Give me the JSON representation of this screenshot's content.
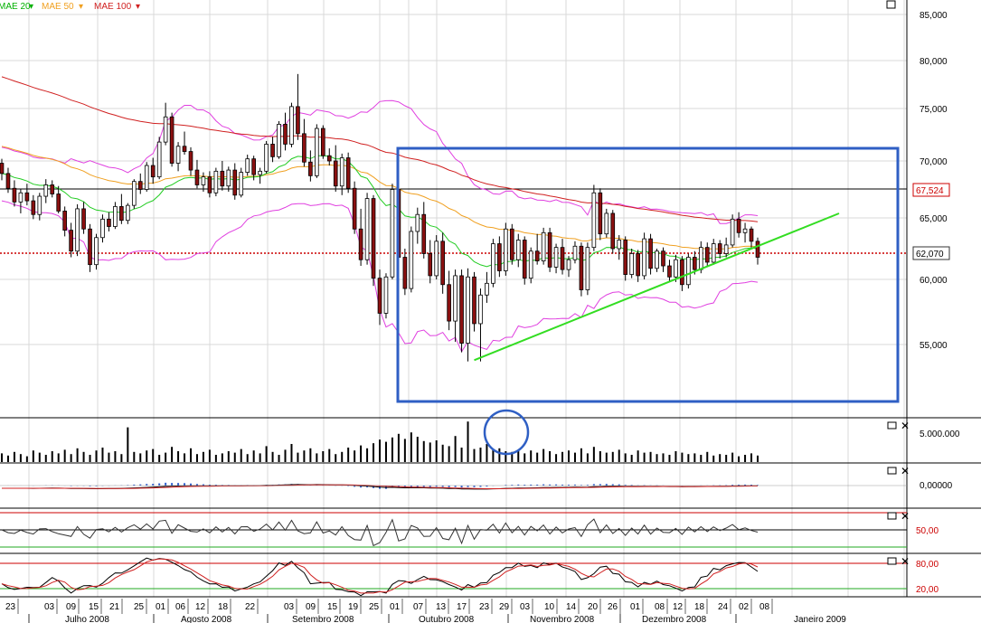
{
  "legend": [
    {
      "label": "MAE 20",
      "color": "#00b000"
    },
    {
      "label": "MAE 50",
      "color": "#f0a020"
    },
    {
      "label": "MAE 100",
      "color": "#d02020"
    }
  ],
  "price_axis": {
    "ticks": [
      "85,000",
      "80,000",
      "75,000",
      "70,000",
      "65,000",
      "60,000",
      "55,000"
    ],
    "tick_values": [
      85000,
      80000,
      75000,
      70000,
      65000,
      60000,
      55000
    ],
    "marker_1": {
      "label": "67,524",
      "value": 67524,
      "color": "#cc0000"
    },
    "marker_2": {
      "label": "62,070",
      "value": 62070,
      "color": "#cc0000"
    }
  },
  "volume_axis": {
    "label": "5.000.000"
  },
  "macd_axis": {
    "label": "0,00000"
  },
  "rsi_axis": {
    "label": "50,00"
  },
  "stoch_axis": {
    "upper": "80,00",
    "lower": "20,00"
  },
  "x_axis": {
    "days": [
      "23",
      "03",
      "09",
      "15",
      "21",
      "25",
      "01",
      "06",
      "12",
      "18",
      "22",
      "03",
      "09",
      "15",
      "19",
      "25",
      "01",
      "07",
      "13",
      "17",
      "23",
      "29",
      "03",
      "10",
      "14",
      "20",
      "26",
      "01",
      "08",
      "12",
      "18",
      "24",
      "02",
      "08"
    ],
    "months": [
      "Julho 2008",
      "Agosto 2008",
      "Setembro 2008",
      "Outubro 2008",
      "Novembro 2008",
      "Dezembro 2008",
      "Janeiro 2009"
    ]
  },
  "chart_data": {
    "type": "candlestick",
    "ylim": [
      52000,
      87000
    ],
    "horizontal_levels": [
      67524,
      62070
    ],
    "candles": [
      [
        69.8,
        70.2,
        68.3,
        68.9
      ],
      [
        68.9,
        69.4,
        67.2,
        67.6
      ],
      [
        67.6,
        68.3,
        66.0,
        66.4
      ],
      [
        66.4,
        67.5,
        65.4,
        67.2
      ],
      [
        67.2,
        68.0,
        66.1,
        66.5
      ],
      [
        66.5,
        67.0,
        64.9,
        65.3
      ],
      [
        65.3,
        67.2,
        64.8,
        66.9
      ],
      [
        66.9,
        68.4,
        66.3,
        67.9
      ],
      [
        67.9,
        68.3,
        66.8,
        67.1
      ],
      [
        67.1,
        67.8,
        65.4,
        65.6
      ],
      [
        65.6,
        66.0,
        63.5,
        64.0
      ],
      [
        64.0,
        64.6,
        61.8,
        62.3
      ],
      [
        62.3,
        66.2,
        61.9,
        65.8
      ],
      [
        65.8,
        66.4,
        63.7,
        64.1
      ],
      [
        64.1,
        64.5,
        60.6,
        61.2
      ],
      [
        61.2,
        63.7,
        60.8,
        63.4
      ],
      [
        63.4,
        65.3,
        63.0,
        64.9
      ],
      [
        64.9,
        65.5,
        63.9,
        64.3
      ],
      [
        64.3,
        66.4,
        64.1,
        66.0
      ],
      [
        66.0,
        67.1,
        64.5,
        64.8
      ],
      [
        64.8,
        66.3,
        64.5,
        66.1
      ],
      [
        66.1,
        68.4,
        65.8,
        68.2
      ],
      [
        68.2,
        68.9,
        67.1,
        67.5
      ],
      [
        67.5,
        69.9,
        67.3,
        69.6
      ],
      [
        69.6,
        70.3,
        68.0,
        68.6
      ],
      [
        68.6,
        72.3,
        68.4,
        71.8
      ],
      [
        71.8,
        75.6,
        71.5,
        74.2
      ],
      [
        74.2,
        74.6,
        69.5,
        69.8
      ],
      [
        69.8,
        71.8,
        69.1,
        71.4
      ],
      [
        71.4,
        72.8,
        70.6,
        70.9
      ],
      [
        70.9,
        71.3,
        68.7,
        69.2
      ],
      [
        69.2,
        70.1,
        67.6,
        67.9
      ],
      [
        67.9,
        69.0,
        67.3,
        68.6
      ],
      [
        68.6,
        69.1,
        66.8,
        67.2
      ],
      [
        67.2,
        69.4,
        66.9,
        69.1
      ],
      [
        69.1,
        70.0,
        67.4,
        67.8
      ],
      [
        67.8,
        69.5,
        67.3,
        69.2
      ],
      [
        69.2,
        69.8,
        66.6,
        67.0
      ],
      [
        67.0,
        69.4,
        66.8,
        69.0
      ],
      [
        69.0,
        70.6,
        68.7,
        70.2
      ],
      [
        70.2,
        70.5,
        68.3,
        68.8
      ],
      [
        68.8,
        69.4,
        68.0,
        69.1
      ],
      [
        69.1,
        71.9,
        68.9,
        71.6
      ],
      [
        71.6,
        72.3,
        69.9,
        70.4
      ],
      [
        70.4,
        73.8,
        70.2,
        73.5
      ],
      [
        73.5,
        74.6,
        71.0,
        71.6
      ],
      [
        71.6,
        75.6,
        71.3,
        75.2
      ],
      [
        75.2,
        78.6,
        72.0,
        72.6
      ],
      [
        72.6,
        74.0,
        69.5,
        69.9
      ],
      [
        69.9,
        71.0,
        68.2,
        68.7
      ],
      [
        68.7,
        73.5,
        68.5,
        73.1
      ],
      [
        73.1,
        73.4,
        70.2,
        70.5
      ],
      [
        70.5,
        71.2,
        69.6,
        70.0
      ],
      [
        70.0,
        71.5,
        67.3,
        67.8
      ],
      [
        67.8,
        70.7,
        67.0,
        70.3
      ],
      [
        70.3,
        70.8,
        67.2,
        67.6
      ],
      [
        67.6,
        68.2,
        63.7,
        64.1
      ],
      [
        64.1,
        65.8,
        61.1,
        61.6
      ],
      [
        61.6,
        67.2,
        61.2,
        66.7
      ],
      [
        66.7,
        67.0,
        59.5,
        60.1
      ],
      [
        60.1,
        60.8,
        56.5,
        57.4
      ],
      [
        57.4,
        60.5,
        57.0,
        60.2
      ],
      [
        60.2,
        68.0,
        60.0,
        67.5
      ],
      [
        67.5,
        68.2,
        61.3,
        61.8
      ],
      [
        61.8,
        62.5,
        58.8,
        59.3
      ],
      [
        59.3,
        64.3,
        59.0,
        63.9
      ],
      [
        63.9,
        65.9,
        62.9,
        65.3
      ],
      [
        65.3,
        66.4,
        61.7,
        62.1
      ],
      [
        62.1,
        63.2,
        59.7,
        60.3
      ],
      [
        60.3,
        63.6,
        60.0,
        63.1
      ],
      [
        63.1,
        63.8,
        58.9,
        59.6
      ],
      [
        59.6,
        60.7,
        56.1,
        56.8
      ],
      [
        56.8,
        60.8,
        55.2,
        60.3
      ],
      [
        60.3,
        60.8,
        54.4,
        55.1
      ],
      [
        55.1,
        60.9,
        53.7,
        60.2
      ],
      [
        60.2,
        60.6,
        56.0,
        56.6
      ],
      [
        56.6,
        59.3,
        53.7,
        58.8
      ],
      [
        58.8,
        60.6,
        58.2,
        59.7
      ],
      [
        59.7,
        63.3,
        59.4,
        62.9
      ],
      [
        62.9,
        63.5,
        60.2,
        60.7
      ],
      [
        60.7,
        64.6,
        60.3,
        64.1
      ],
      [
        64.1,
        64.5,
        61.2,
        61.6
      ],
      [
        61.6,
        63.7,
        61.0,
        63.2
      ],
      [
        63.2,
        63.5,
        59.6,
        60.1
      ],
      [
        60.1,
        62.6,
        59.7,
        62.3
      ],
      [
        62.3,
        63.7,
        61.2,
        61.5
      ],
      [
        61.5,
        64.2,
        61.2,
        63.8
      ],
      [
        63.8,
        64.2,
        60.6,
        61.0
      ],
      [
        61.0,
        62.9,
        60.5,
        62.6
      ],
      [
        62.6,
        63.3,
        60.4,
        60.8
      ],
      [
        60.8,
        61.9,
        60.2,
        61.6
      ],
      [
        61.6,
        63.1,
        61.3,
        62.7
      ],
      [
        62.7,
        63.0,
        58.7,
        59.2
      ],
      [
        59.2,
        63.0,
        58.8,
        62.6
      ],
      [
        62.6,
        67.9,
        62.3,
        67.2
      ],
      [
        67.2,
        67.6,
        63.2,
        63.7
      ],
      [
        63.7,
        65.8,
        63.4,
        65.4
      ],
      [
        65.4,
        65.7,
        62.1,
        62.5
      ],
      [
        62.5,
        63.6,
        61.6,
        63.2
      ],
      [
        63.2,
        63.5,
        59.9,
        60.4
      ],
      [
        60.4,
        62.5,
        60.1,
        62.1
      ],
      [
        62.1,
        62.4,
        59.8,
        60.3
      ],
      [
        60.3,
        63.8,
        60.0,
        63.3
      ],
      [
        63.3,
        63.7,
        60.4,
        60.9
      ],
      [
        60.9,
        62.5,
        60.6,
        62.3
      ],
      [
        62.3,
        62.6,
        60.6,
        61.1
      ],
      [
        61.1,
        61.6,
        59.9,
        60.2
      ],
      [
        60.2,
        62.0,
        59.8,
        61.6
      ],
      [
        61.6,
        61.9,
        59.1,
        59.6
      ],
      [
        59.6,
        62.1,
        59.3,
        61.8
      ],
      [
        61.8,
        62.3,
        60.4,
        60.8
      ],
      [
        60.8,
        63.1,
        60.5,
        62.6
      ],
      [
        62.6,
        63.0,
        61.0,
        61.4
      ],
      [
        61.4,
        63.3,
        61.2,
        62.9
      ],
      [
        62.9,
        63.2,
        61.7,
        62.1
      ],
      [
        62.1,
        63.4,
        61.8,
        62.8
      ],
      [
        62.8,
        65.3,
        62.6,
        64.9
      ],
      [
        64.9,
        65.5,
        63.4,
        63.8
      ],
      [
        63.8,
        64.6,
        63.0,
        64.1
      ],
      [
        64.1,
        64.3,
        62.6,
        63.1
      ],
      [
        63.1,
        63.4,
        61.2,
        61.8
      ]
    ],
    "volume": [
      1.2,
      0.9,
      1.4,
      1.1,
      0.8,
      1.6,
      1.3,
      1.0,
      1.5,
      1.2,
      1.7,
      1.1,
      1.9,
      1.4,
      1.0,
      1.6,
      2.0,
      1.3,
      1.5,
      1.1,
      4.8,
      1.4,
      1.2,
      1.6,
      1.8,
      1.0,
      1.3,
      2.1,
      1.5,
      1.2,
      1.9,
      1.1,
      1.4,
      1.7,
      1.0,
      1.2,
      1.5,
      1.3,
      1.8,
      1.1,
      1.6,
      1.2,
      2.2,
      1.4,
      1.0,
      1.7,
      2.5,
      1.3,
      1.6,
      1.9,
      1.2,
      1.5,
      1.8,
      1.1,
      1.4,
      2.0,
      1.6,
      2.3,
      1.9,
      2.6,
      3.1,
      2.8,
      3.4,
      3.9,
      3.2,
      4.1,
      3.5,
      2.9,
      2.7,
      3.0,
      2.4,
      2.2,
      3.6,
      2.0,
      5.6,
      1.8,
      2.0,
      2.5,
      1.7,
      1.9,
      1.5,
      1.4,
      1.7,
      1.2,
      1.6,
      1.3,
      1.8,
      1.5,
      1.1,
      1.4,
      1.6,
      1.3,
      1.9,
      1.2,
      2.1,
      1.5,
      1.3,
      1.4,
      1.7,
      1.2,
      1.0,
      1.6,
      1.3,
      1.4,
      1.1,
      1.2,
      1.0,
      1.5,
      1.3,
      1.1,
      1.2,
      1.0,
      1.4,
      0.9,
      1.1,
      1.0,
      1.3,
      0.8,
      1.0,
      1.2,
      0.9
    ],
    "trendline": {
      "from": [
        75,
        53.8
      ],
      "to": [
        125,
        65.3
      ]
    }
  }
}
